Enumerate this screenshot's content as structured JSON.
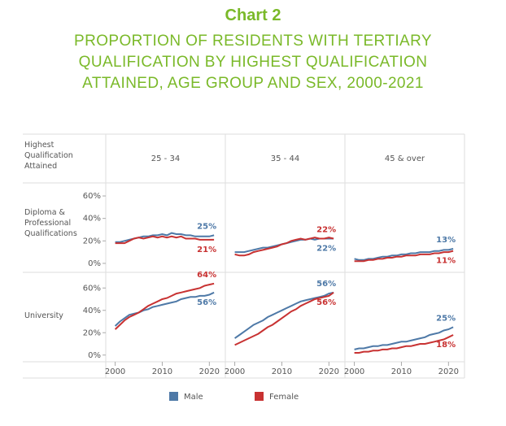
{
  "chart_data": {
    "type": "line",
    "title": "Chart 2",
    "subtitle": "PROPORTION OF RESIDENTS WITH TERTIARY QUALIFICATION BY HIGHEST QUALIFICATION ATTAINED, AGE GROUP AND SEX, 2000-2021",
    "row_header": "Highest Qualification Attained",
    "columns": [
      "25 - 34",
      "35 - 44",
      "45 & over"
    ],
    "x": [
      2000,
      2001,
      2002,
      2003,
      2004,
      2005,
      2006,
      2007,
      2008,
      2009,
      2010,
      2011,
      2012,
      2013,
      2014,
      2015,
      2016,
      2017,
      2018,
      2019,
      2020,
      2021
    ],
    "xlim": [
      1998,
      2023.4
    ],
    "xticks": [
      2000,
      2010,
      2020
    ],
    "series": [
      {
        "name": "Male",
        "color": "#4e79a7"
      },
      {
        "name": "Female",
        "color": "#c83232"
      }
    ],
    "rows": [
      {
        "label": "Diploma & Professional Qualifications",
        "ylim": [
          -8,
          71.6
        ],
        "yticks": [
          {
            "value": 0,
            "label": "0%"
          },
          {
            "value": 20,
            "label": "20%"
          },
          {
            "value": 40,
            "label": "40%"
          },
          {
            "value": 60,
            "label": "60%"
          }
        ],
        "panels": [
          [
            {
              "values": [
                19,
                19,
                20,
                21,
                22,
                23,
                24,
                24,
                25,
                25,
                26,
                25,
                27,
                26,
                26,
                25,
                25,
                24,
                24,
                24,
                24,
                25
              ],
              "value_labels": [
                null,
                null,
                null,
                null,
                null,
                null,
                null,
                null,
                null,
                null,
                null,
                null,
                null,
                null,
                null,
                null,
                null,
                null,
                null,
                null,
                null,
                "25%"
              ]
            },
            {
              "values": [
                18,
                18,
                18,
                20,
                22,
                23,
                22,
                23,
                24,
                23,
                24,
                23,
                24,
                23,
                24,
                22,
                22,
                22,
                21,
                21,
                21,
                21
              ],
              "value_labels": [
                null,
                null,
                null,
                null,
                null,
                null,
                null,
                null,
                null,
                null,
                null,
                null,
                null,
                null,
                null,
                null,
                null,
                null,
                null,
                null,
                null,
                "21%"
              ]
            }
          ],
          [
            {
              "values": [
                10,
                10,
                10,
                11,
                12,
                13,
                14,
                14,
                15,
                16,
                17,
                18,
                19,
                20,
                21,
                21,
                22,
                21,
                22,
                22,
                22,
                22
              ],
              "value_labels": [
                null,
                null,
                null,
                null,
                null,
                null,
                null,
                null,
                null,
                null,
                null,
                null,
                null,
                null,
                null,
                null,
                null,
                null,
                null,
                null,
                null,
                "22%"
              ]
            },
            {
              "values": [
                8,
                7,
                7,
                8,
                10,
                11,
                12,
                13,
                14,
                15,
                17,
                18,
                20,
                21,
                22,
                21,
                22,
                23,
                22,
                22,
                23,
                22
              ],
              "value_labels": [
                null,
                null,
                null,
                null,
                null,
                null,
                null,
                null,
                null,
                null,
                null,
                null,
                null,
                null,
                null,
                null,
                null,
                null,
                null,
                null,
                null,
                "22%"
              ]
            }
          ],
          [
            {
              "values": [
                4,
                3,
                3,
                4,
                4,
                5,
                6,
                6,
                7,
                7,
                8,
                8,
                9,
                9,
                10,
                10,
                10,
                11,
                11,
                12,
                12,
                13
              ],
              "value_labels": [
                null,
                null,
                null,
                null,
                null,
                null,
                null,
                null,
                null,
                null,
                null,
                null,
                null,
                null,
                null,
                null,
                null,
                null,
                null,
                null,
                null,
                "13%"
              ]
            },
            {
              "values": [
                2,
                2,
                2,
                3,
                3,
                4,
                4,
                5,
                5,
                6,
                6,
                7,
                7,
                7,
                8,
                8,
                8,
                9,
                9,
                10,
                10,
                11
              ],
              "value_labels": [
                null,
                null,
                null,
                null,
                null,
                null,
                null,
                null,
                null,
                null,
                null,
                null,
                null,
                null,
                null,
                null,
                null,
                null,
                null,
                null,
                null,
                "11%"
              ]
            }
          ]
        ]
      },
      {
        "label": "University",
        "ylim": [
          -6,
          74
        ],
        "yticks": [
          {
            "value": 0,
            "label": "0%"
          },
          {
            "value": 20,
            "label": "20%"
          },
          {
            "value": 40,
            "label": "40%"
          },
          {
            "value": 60,
            "label": "60%"
          }
        ],
        "panels": [
          [
            {
              "values": [
                26,
                30,
                33,
                36,
                37,
                38,
                40,
                41,
                43,
                44,
                45,
                46,
                47,
                48,
                50,
                51,
                52,
                52,
                53,
                53,
                54,
                56
              ],
              "value_labels": [
                null,
                null,
                null,
                null,
                null,
                null,
                null,
                null,
                null,
                null,
                null,
                null,
                null,
                null,
                null,
                null,
                null,
                null,
                null,
                null,
                null,
                "56%"
              ]
            },
            {
              "values": [
                23,
                27,
                31,
                34,
                36,
                38,
                41,
                44,
                46,
                48,
                50,
                51,
                53,
                55,
                56,
                57,
                58,
                59,
                60,
                62,
                63,
                64
              ],
              "value_labels": [
                null,
                null,
                null,
                null,
                null,
                null,
                null,
                null,
                null,
                null,
                null,
                null,
                null,
                null,
                null,
                null,
                null,
                null,
                null,
                null,
                null,
                "64%"
              ]
            }
          ],
          [
            {
              "values": [
                15,
                18,
                21,
                24,
                27,
                29,
                31,
                34,
                36,
                38,
                40,
                42,
                44,
                46,
                48,
                49,
                50,
                51,
                52,
                53,
                55,
                56
              ],
              "value_labels": [
                null,
                null,
                null,
                null,
                null,
                null,
                null,
                null,
                null,
                null,
                null,
                null,
                null,
                null,
                null,
                null,
                null,
                null,
                null,
                null,
                null,
                "56%"
              ]
            },
            {
              "values": [
                9,
                11,
                13,
                15,
                17,
                19,
                22,
                25,
                27,
                30,
                33,
                36,
                39,
                41,
                44,
                46,
                48,
                50,
                51,
                52,
                53,
                56
              ],
              "value_labels": [
                null,
                null,
                null,
                null,
                null,
                null,
                null,
                null,
                null,
                null,
                null,
                null,
                null,
                null,
                null,
                null,
                null,
                null,
                null,
                null,
                null,
                "56%"
              ]
            }
          ],
          [
            {
              "values": [
                5,
                6,
                6,
                7,
                8,
                8,
                9,
                9,
                10,
                11,
                12,
                12,
                13,
                14,
                15,
                16,
                18,
                19,
                20,
                22,
                23,
                25
              ],
              "value_labels": [
                null,
                null,
                null,
                null,
                null,
                null,
                null,
                null,
                null,
                null,
                null,
                null,
                null,
                null,
                null,
                null,
                null,
                null,
                null,
                null,
                null,
                "25%"
              ]
            },
            {
              "values": [
                2,
                2,
                3,
                3,
                4,
                4,
                5,
                5,
                6,
                6,
                7,
                8,
                8,
                9,
                10,
                10,
                11,
                12,
                13,
                14,
                16,
                18
              ],
              "value_labels": [
                null,
                null,
                null,
                null,
                null,
                null,
                null,
                null,
                null,
                null,
                null,
                null,
                null,
                null,
                null,
                null,
                null,
                null,
                null,
                null,
                null,
                "18%"
              ]
            }
          ]
        ]
      }
    ]
  }
}
